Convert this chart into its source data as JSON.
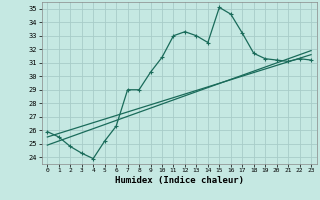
{
  "title": "",
  "xlabel": "Humidex (Indice chaleur)",
  "xlim": [
    -0.5,
    23.5
  ],
  "ylim": [
    23.5,
    35.5
  ],
  "xticks": [
    0,
    1,
    2,
    3,
    4,
    5,
    6,
    7,
    8,
    9,
    10,
    11,
    12,
    13,
    14,
    15,
    16,
    17,
    18,
    19,
    20,
    21,
    22,
    23
  ],
  "yticks": [
    24,
    25,
    26,
    27,
    28,
    29,
    30,
    31,
    32,
    33,
    34,
    35
  ],
  "bg_color": "#c5e8e2",
  "grid_color": "#a8ccc8",
  "line_color": "#1a6b5a",
  "line1_x": [
    0,
    1,
    2,
    3,
    4,
    5,
    6,
    7,
    8,
    9,
    10,
    11,
    12,
    13,
    14,
    15,
    16,
    17,
    18,
    19,
    20,
    21,
    22,
    23
  ],
  "line1_y": [
    25.9,
    25.5,
    24.8,
    24.3,
    23.9,
    25.2,
    26.3,
    29.0,
    29.0,
    30.3,
    31.4,
    33.0,
    33.3,
    33.0,
    32.5,
    35.1,
    34.6,
    33.2,
    31.7,
    31.3,
    31.2,
    31.1,
    31.3,
    31.2
  ],
  "line2_x": [
    0,
    23
  ],
  "line2_y": [
    25.5,
    31.6
  ],
  "line3_x": [
    0,
    23
  ],
  "line3_y": [
    24.9,
    31.9
  ]
}
